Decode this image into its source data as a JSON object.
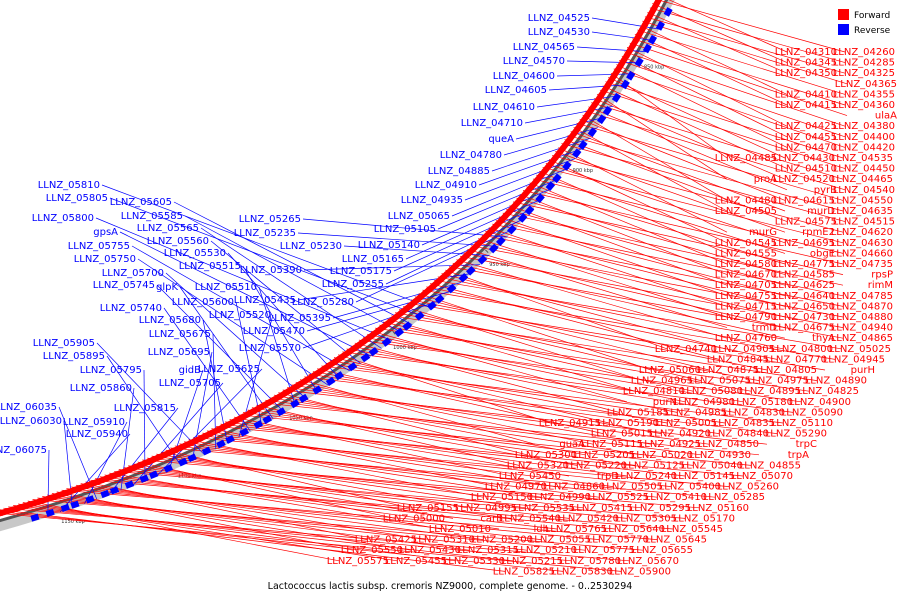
{
  "caption": "Lactococcus lactis subsp. cremoris NZ9000, complete genome. - 0..2530294",
  "legend": {
    "forward": {
      "label": "Forward",
      "color": "#ff0000"
    },
    "reverse": {
      "label": "Reverse",
      "color": "#0000ff"
    }
  },
  "colors": {
    "backbone": "#555555",
    "forward": "#ff0000",
    "reverse": "#0000ff"
  },
  "ticks": [
    {
      "label": "850 kbp",
      "pos": 850
    },
    {
      "label": "900 kbp",
      "pos": 900
    },
    {
      "label": "950 kbp",
      "pos": 950
    },
    {
      "label": "1000 kbp",
      "pos": 1000
    },
    {
      "label": "1050 kbp",
      "pos": 1050
    },
    {
      "label": "1100 kbp",
      "pos": 1100
    },
    {
      "label": "1150 kbp",
      "pos": 1150
    }
  ],
  "reverse_genes": [
    "LLNZ_04525",
    "LLNZ_04530",
    "LLNZ_04565",
    "LLNZ_04570",
    "LLNZ_04600",
    "LLNZ_04605",
    "LLNZ_04610",
    "LLNZ_04710",
    "queA",
    "LLNZ_04780",
    "LLNZ_04885",
    "LLNZ_04910",
    "LLNZ_04935",
    "LLNZ_05065",
    "LLNZ_05105",
    "LLNZ_05140",
    "LLNZ_05165",
    "LLNZ_05175",
    "LLNZ_05255",
    "LLNZ_05280",
    "LLNZ_05265",
    "LLNZ_05235",
    "LLNZ_05230",
    "LLNZ_05390",
    "LLNZ_05435",
    "LLNZ_05395",
    "LLNZ_05470",
    "LLNZ_05570",
    "LLNZ_05810",
    "LLNZ_05805",
    "LLNZ_05605",
    "LLNZ_05585",
    "LLNZ_05800",
    "LLNZ_05565",
    "gpsA",
    "LLNZ_05560",
    "LLNZ_05755",
    "LLNZ_05530",
    "LLNZ_05750",
    "LLNZ_05515",
    "LLNZ_05700",
    "LLNZ_05510",
    "LLNZ_05745",
    "glpK",
    "LLNZ_05600",
    "LLNZ_05740",
    "LLNZ_05520",
    "LLNZ_05680",
    "LLNZ_05675",
    "LLNZ_05905",
    "LLNZ_05695",
    "LLNZ_05895",
    "gidB",
    "LLNZ_05625",
    "LLNZ_05795",
    "LLNZ_05705",
    "LLNZ_05860",
    "LLNZ_05815",
    "LLNZ_06035",
    "LLNZ_05910",
    "LLNZ_06030",
    "LLNZ_05940",
    "LLNZ_06075"
  ],
  "forward_genes": [
    "LLNZ_04310",
    "LLNZ_04260",
    "LLNZ_04345",
    "LLNZ_04285",
    "LLNZ_04350",
    "LLNZ_04325",
    "LLNZ_04365",
    "LLNZ_04410",
    "LLNZ_04355",
    "LLNZ_04415",
    "LLNZ_04360",
    "ulaA",
    "LLNZ_04425",
    "LLNZ_04380",
    "LLNZ_04455",
    "LLNZ_04400",
    "LLNZ_04470",
    "LLNZ_04420",
    "LLNZ_04485",
    "LLNZ_04430",
    "LLNZ_04535",
    "LLNZ_04510",
    "LLNZ_04450",
    "proA",
    "LLNZ_04520",
    "LLNZ_04465",
    "pyrB",
    "LLNZ_04540",
    "LLNZ_04480",
    "LLNZ_04615",
    "LLNZ_04550",
    "LLNZ_04505",
    "murD",
    "LLNZ_04635",
    "LLNZ_04575",
    "LLNZ_04515",
    "murG",
    "rpmE2",
    "LLNZ_04620",
    "LLNZ_04545",
    "LLNZ_04695",
    "LLNZ_04630",
    "LLNZ_04555",
    "obgE",
    "LLNZ_04660",
    "LLNZ_04580",
    "LLNZ_04775",
    "LLNZ_04735",
    "LLNZ_04670",
    "LLNZ_04585",
    "rpsP",
    "LLNZ_04705",
    "LLNZ_04625",
    "rimM",
    "LLNZ_04755",
    "LLNZ_04640",
    "LLNZ_04785",
    "LLNZ_04715",
    "LLNZ_04650",
    "LLNZ_04870",
    "LLNZ_04790",
    "LLNZ_04730",
    "LLNZ_04880",
    "trmD",
    "LLNZ_04675",
    "LLNZ_04940",
    "LLNZ_04760",
    "thyA",
    "LLNZ_04865",
    "LLNZ_04740",
    "LLNZ_04905",
    "LLNZ_04800",
    "LLNZ_05025",
    "LLNZ_04845",
    "LLNZ_04770",
    "LLNZ_04945",
    "LLNZ_05060",
    "LLNZ_04875",
    "LLNZ_04805",
    "purH",
    "LLNZ_04965",
    "LLNZ_05075",
    "LLNZ_04975",
    "LLNZ_04890",
    "LLNZ_04810",
    "LLNZ_05080",
    "LLNZ_04895",
    "LLNZ_04825",
    "purN",
    "LLNZ_04980",
    "LLNZ_05180",
    "LLNZ_04900",
    "LLNZ_05185",
    "LLNZ_04985",
    "LLNZ_04830",
    "LLNZ_05090",
    "LLNZ_04915",
    "LLNZ_05190",
    "LLNZ_05005",
    "LLNZ_04835",
    "LLNZ_05110",
    "LLNZ_05015",
    "LLNZ_04920",
    "LLNZ_04840",
    "LLNZ_05290",
    "guaA",
    "LLNZ_05115",
    "LLNZ_04925",
    "LLNZ_04850",
    "trpC",
    "LLNZ_05300",
    "LLNZ_05205",
    "LLNZ_05020",
    "LLNZ_04930",
    "trpA",
    "LLNZ_05320",
    "LLNZ_05220",
    "LLNZ_05125",
    "LLNZ_05040",
    "LLNZ_04855",
    "LLNZ_05450",
    "trpD",
    "LLNZ_05240",
    "LLNZ_05145",
    "LLNZ_05070",
    "LLNZ_04970",
    "LLNZ_04860",
    "LLNZ_05505",
    "LLNZ_05400",
    "LLNZ_05260",
    "LLNZ_05150",
    "LLNZ_04990",
    "LLNZ_05525",
    "LLNZ_05410",
    "LLNZ_05285",
    "LLNZ_05155",
    "LLNZ_04995",
    "LLNZ_05535",
    "LLNZ_05415",
    "LLNZ_05295",
    "LLNZ_05160",
    "LLNZ_05000",
    "carB",
    "LLNZ_05540",
    "LLNZ_05420",
    "LLNZ_05305",
    "LLNZ_05170",
    "LLNZ_05010",
    "ldh",
    "LLNZ_05765",
    "LLNZ_05640",
    "LLNZ_05545",
    "LLNZ_05425",
    "LLNZ_05310",
    "LLNZ_05200",
    "LLNZ_05055",
    "LLNZ_05770",
    "LLNZ_05645",
    "LLNZ_05550",
    "LLNZ_05430",
    "LLNZ_05315",
    "LLNZ_05210",
    "LLNZ_05775",
    "LLNZ_05655",
    "LLNZ_05575",
    "LLNZ_05455",
    "LLNZ_05330",
    "LLNZ_05215",
    "LLNZ_05780",
    "LLNZ_05670",
    "LLNZ_05825",
    "LLNZ_05830",
    "LLNZ_05900"
  ]
}
